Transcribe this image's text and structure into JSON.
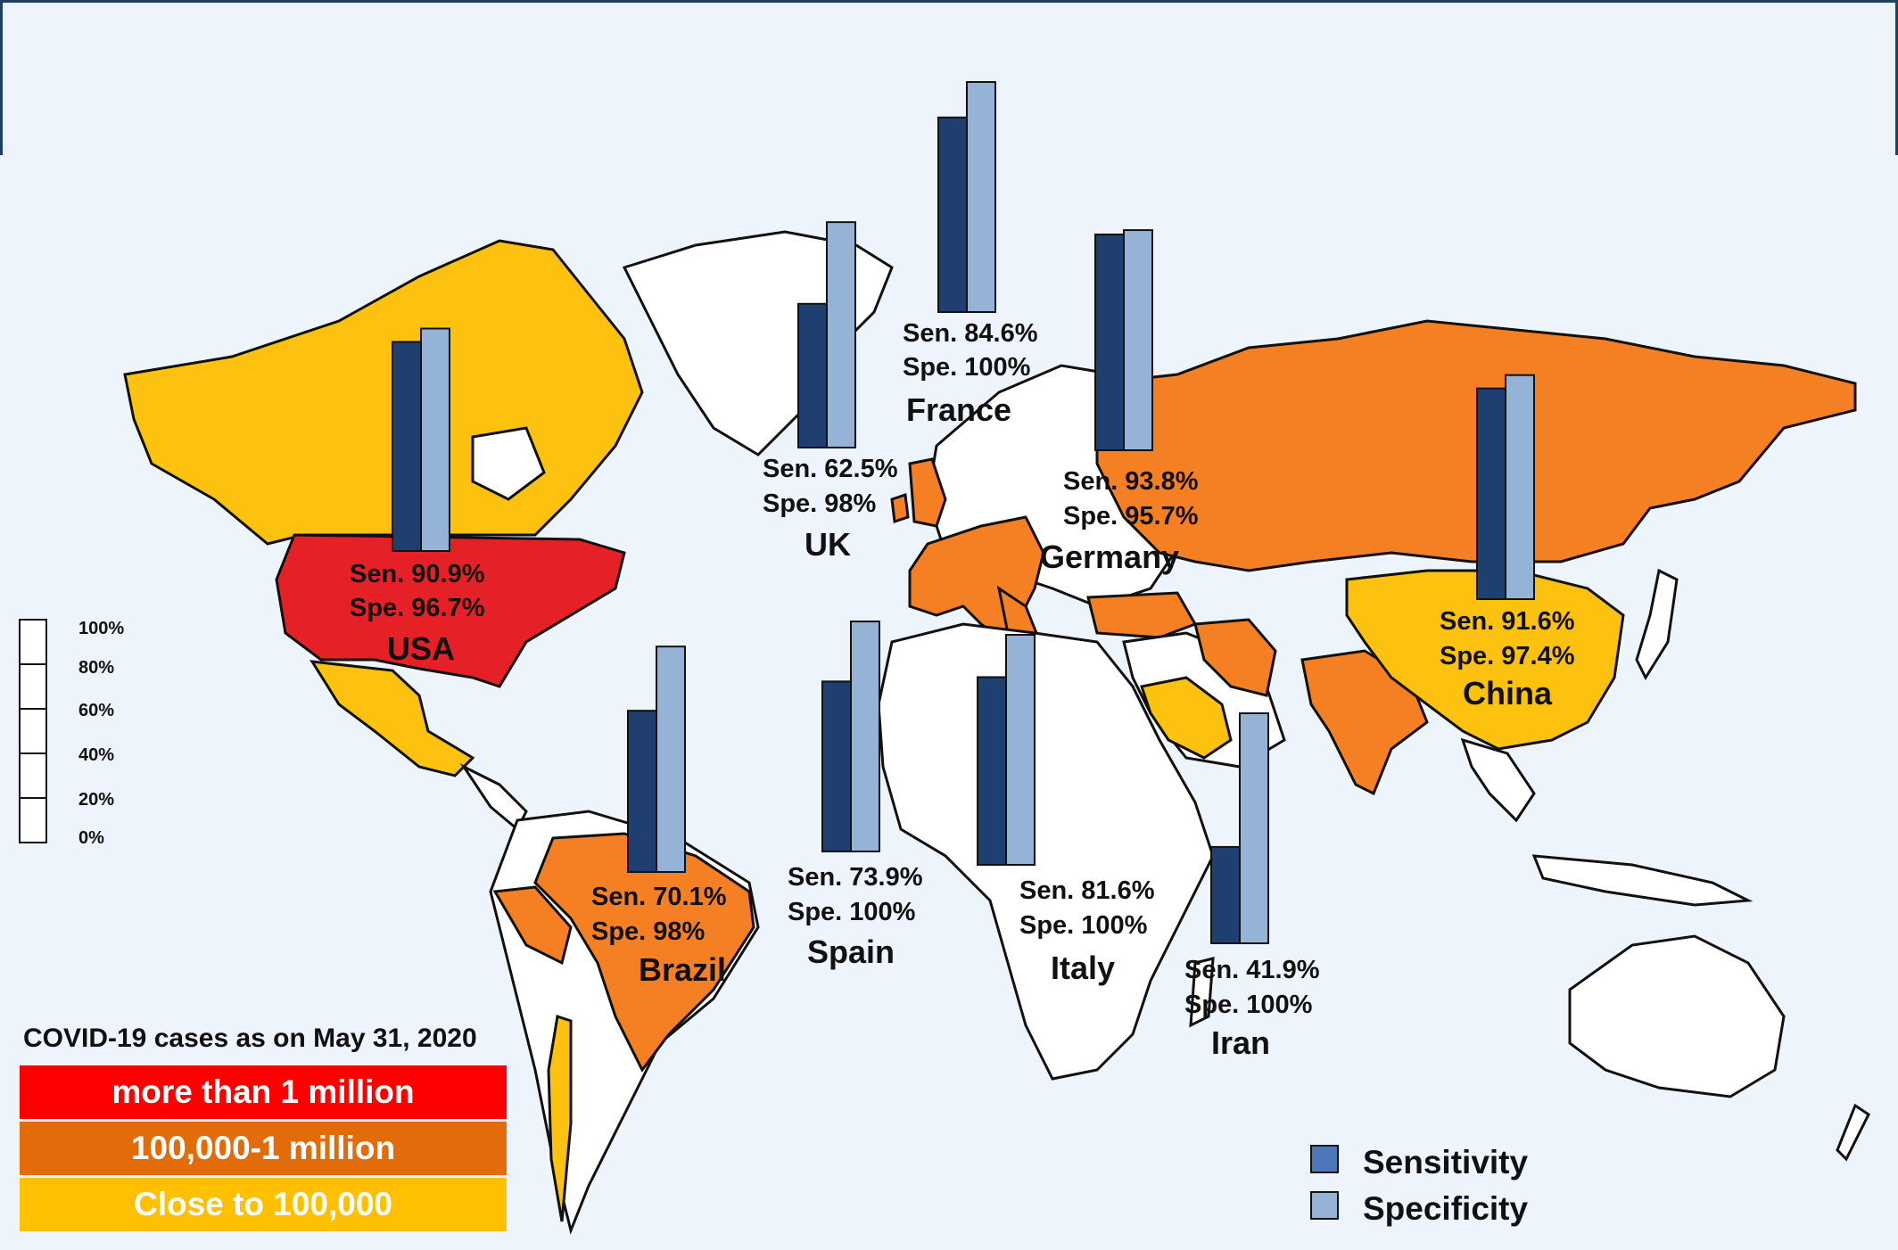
{
  "legend": {
    "title": "COVID-19 cases as on May 31, 2020",
    "levels": [
      {
        "label": "more than 1 million",
        "color": "#ff0000"
      },
      {
        "label": "100,000-1 million",
        "color": "#e36c0a"
      },
      {
        "label": "Close to 100,000",
        "color": "#ffc000"
      }
    ]
  },
  "scale": {
    "ticks": [
      "100%",
      "80%",
      "60%",
      "40%",
      "20%",
      "0%"
    ]
  },
  "series_legend": [
    {
      "name": "Sensitivity",
      "color": "#1f3f70"
    },
    {
      "name": "Specificity",
      "color": "#95b3d7"
    }
  ],
  "fill_colors": {
    "red": "#e52127",
    "orange": "#f58024",
    "yellow": "#fdc20f",
    "white": "#ffffff",
    "ocean": "#eef4fb"
  },
  "countries": [
    {
      "name": "USA",
      "sen": 90.9,
      "spe": 96.7,
      "sen_label": "Sen. 90.9%",
      "spe_label": "Spe. 96.7%"
    },
    {
      "name": "UK",
      "sen": 62.5,
      "spe": 98,
      "sen_label": "Sen. 62.5%",
      "spe_label": "Spe. 98%"
    },
    {
      "name": "France",
      "sen": 84.6,
      "spe": 100,
      "sen_label": "Sen. 84.6%",
      "spe_label": "Spe. 100%"
    },
    {
      "name": "Germany",
      "sen": 93.8,
      "spe": 95.7,
      "sen_label": "Sen. 93.8%",
      "spe_label": "Spe. 95.7%"
    },
    {
      "name": "China",
      "sen": 91.6,
      "spe": 97.4,
      "sen_label": "Sen.  91.6%",
      "spe_label": "Spe.  97.4%"
    },
    {
      "name": "Brazil",
      "sen": 70.1,
      "spe": 98,
      "sen_label": "Sen. 70.1%",
      "spe_label": "Spe. 98%"
    },
    {
      "name": "Spain",
      "sen": 73.9,
      "spe": 100,
      "sen_label": "Sen. 73.9%",
      "spe_label": "Spe. 100%"
    },
    {
      "name": "Italy",
      "sen": 81.6,
      "spe": 100,
      "sen_label": "Sen. 81.6%",
      "spe_label": "Spe. 100%"
    },
    {
      "name": "Iran",
      "sen": 41.9,
      "spe": 100,
      "sen_label": "Sen. 41.9%",
      "spe_label": "Spe. 100%"
    }
  ]
}
